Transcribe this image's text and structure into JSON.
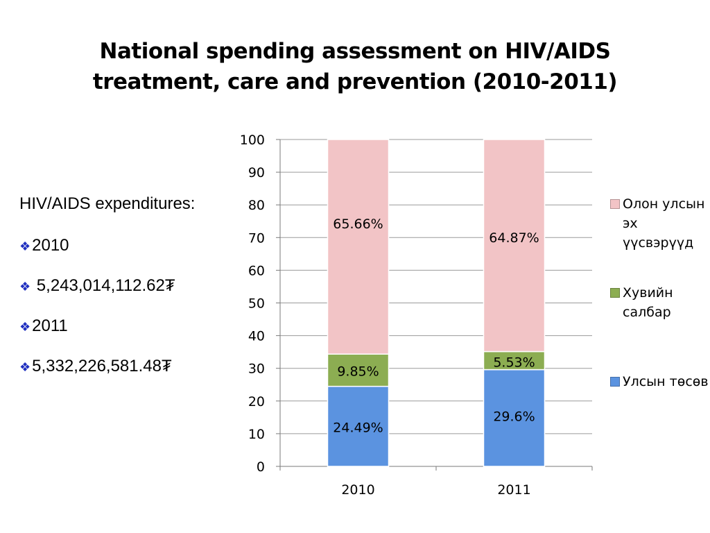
{
  "page": {
    "title_line1": "National spending assessment on HIV/AIDS",
    "title_line2": "treatment, care and prevention (2010-2011)"
  },
  "expenditures": {
    "heading": "HIV/AIDS expenditures:",
    "items": [
      {
        "text": "2010"
      },
      {
        "text": " 5,243,014,112.62₮"
      },
      {
        "text": "2011"
      },
      {
        "text": "5,332,226,581.48₮"
      }
    ]
  },
  "chart_data": {
    "type": "bar",
    "stacked": true,
    "categories": [
      "2010",
      "2011"
    ],
    "series": [
      {
        "name": "Улсын төсөв",
        "values": [
          24.49,
          29.6
        ],
        "labels": [
          "24.49%",
          "29.6%"
        ],
        "color": "#5b93e0"
      },
      {
        "name": "Хувийн салбар",
        "values": [
          9.85,
          5.53
        ],
        "labels": [
          "9.85%",
          "5.53%"
        ],
        "color": "#8cad52"
      },
      {
        "name": "Олон улсын эх үүсвэрүүд",
        "values": [
          65.66,
          64.87
        ],
        "labels": [
          "65.66%",
          "64.87%"
        ],
        "color": "#f2c4c6"
      }
    ],
    "legend_order": [
      "Олон улсын эх үүсвэрүүд",
      "Хувийн салбар",
      "Улсын төсөв"
    ],
    "ylim": [
      0,
      100
    ],
    "yticks": [
      0,
      10,
      20,
      30,
      40,
      50,
      60,
      70,
      80,
      90,
      100
    ],
    "grid": true,
    "legend_position": "right"
  }
}
